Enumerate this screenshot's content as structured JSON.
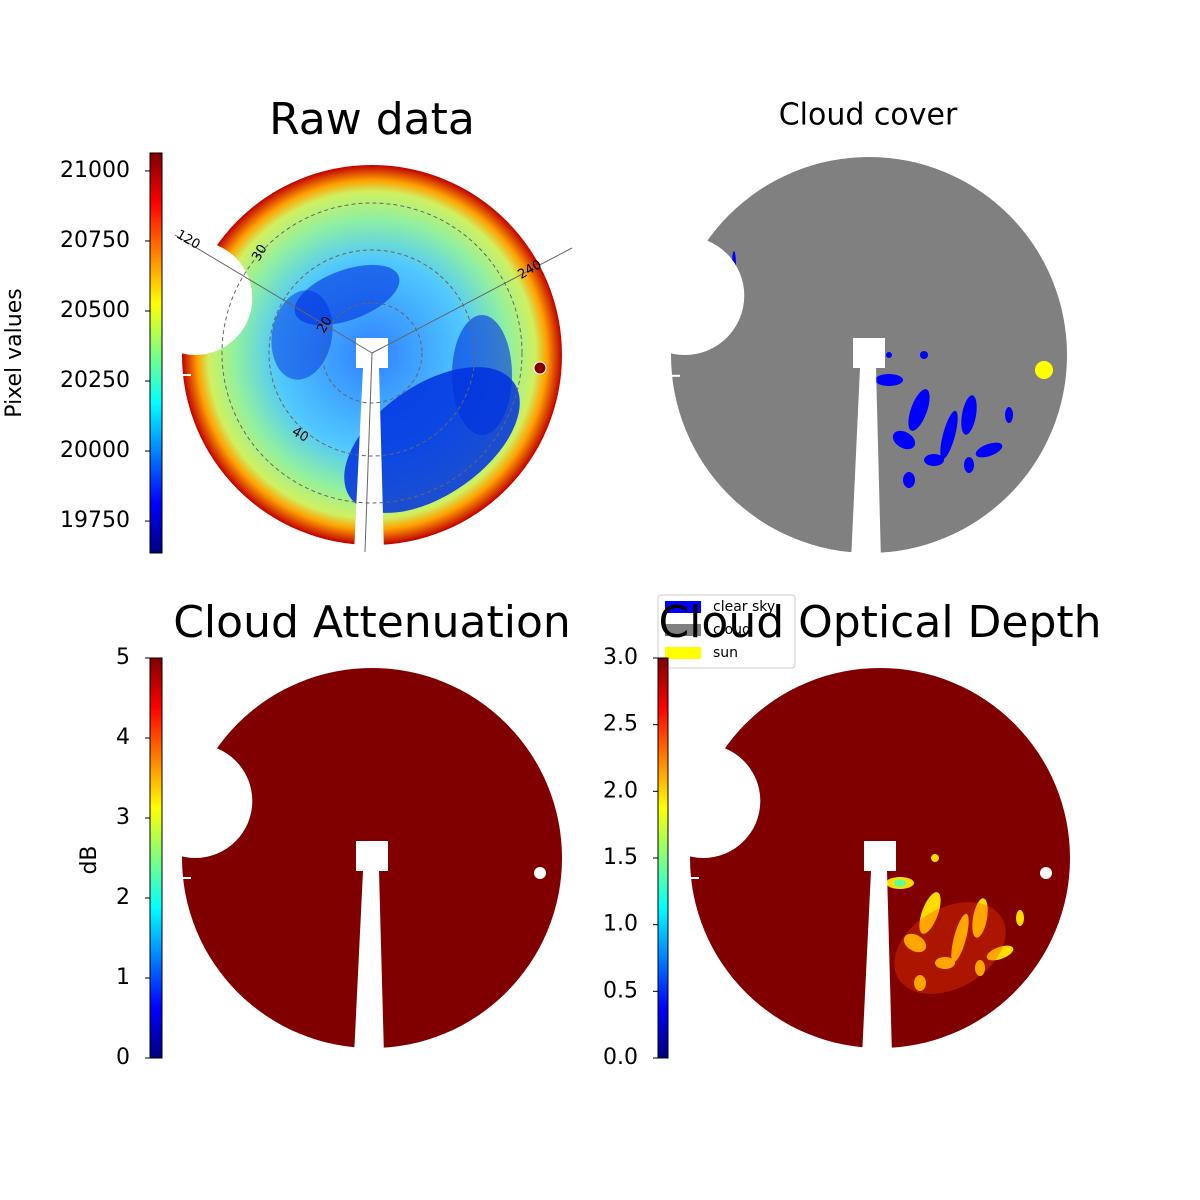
{
  "chart_data": [
    {
      "type": "image",
      "title": "Raw data",
      "colorbar_label": "Pixel values",
      "ylim": [
        19636,
        21064
      ],
      "yticks": [
        19750,
        20000,
        20250,
        20500,
        20750,
        21000
      ],
      "annotations": [
        "120",
        "30",
        "240",
        "20",
        "40"
      ]
    },
    {
      "type": "image",
      "title": "Cloud cover",
      "legend": [
        {
          "name": "clear sky",
          "color": "#0000ff"
        },
        {
          "name": "cloud",
          "color": "#808080"
        },
        {
          "name": "sun",
          "color": "#ffff00"
        }
      ]
    },
    {
      "type": "image",
      "title": "Cloud Attenuation",
      "colorbar_label": "dB",
      "ylim": [
        0,
        5
      ],
      "yticks": [
        0,
        1,
        2,
        3,
        4,
        5
      ]
    },
    {
      "type": "image",
      "title": "Cloud Optical Depth",
      "ylim": [
        0,
        3
      ],
      "yticks": [
        {
          "value": 0,
          "label": "0.0"
        },
        0.5,
        {
          "value": 1,
          "label": "1.0"
        },
        1.5,
        {
          "value": 2,
          "label": "2.0"
        },
        2.5,
        {
          "value": 3,
          "label": "3.0"
        }
      ]
    }
  ]
}
